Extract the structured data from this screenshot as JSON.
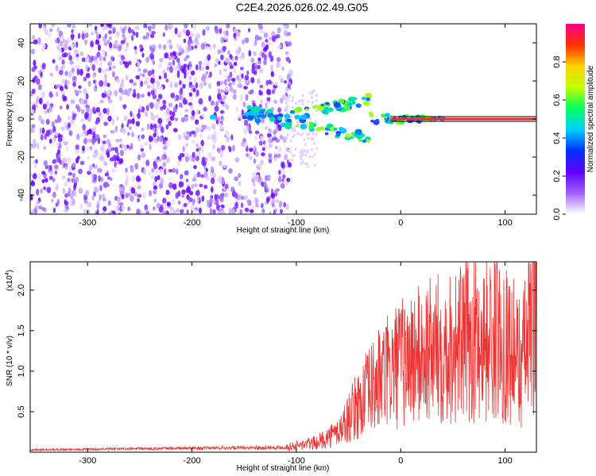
{
  "title": "C2E4.2026.026.02.49.G05",
  "chart_data": [
    {
      "type": "heatmap",
      "name": "spectrogram",
      "xlabel": "Height of straight line (km)",
      "ylabel": "Frequency (Hz)",
      "xlim": [
        -355,
        130
      ],
      "ylim": [
        -50,
        50
      ],
      "xticks": [
        -300,
        -200,
        -100,
        0,
        100
      ],
      "yticks": [
        -40,
        -20,
        0,
        20,
        40
      ],
      "noise_region_km": [
        -355,
        -105
      ],
      "signal_line_hz": 0,
      "colorbar": {
        "label": "Normalized spectral amplitude",
        "range": [
          0,
          1
        ],
        "ticks": [
          0.0,
          0.2,
          0.4,
          0.6,
          0.8
        ],
        "colors": [
          "#ffffff",
          "#a060ff",
          "#6000ff",
          "#0030ff",
          "#00d0ff",
          "#00ff60",
          "#c0ff00",
          "#ffd000",
          "#ff3000",
          "#ff0090"
        ]
      }
    },
    {
      "type": "line",
      "name": "snr",
      "xlabel": "Height of straight line (km)",
      "ylabel": "SNR (10 * v/v)",
      "scale_label": "(x10",
      "scale_exp": "4",
      "xlim": [
        -355,
        130
      ],
      "ylim": [
        0,
        23500
      ],
      "xticks": [
        -300,
        -200,
        -100,
        0,
        100
      ],
      "yticks": [
        0.5,
        1.0,
        1.5,
        2.0
      ],
      "ytick_labels": [
        "0.5",
        "1.0",
        "1.5",
        "2.0"
      ],
      "color": "#ee3333",
      "envelope_km": [
        -355,
        -110,
        -80,
        -60,
        -40,
        -20,
        0,
        20,
        40,
        60,
        80,
        100,
        115,
        125,
        130
      ],
      "envelope_snr": [
        300,
        600,
        1200,
        2500,
        6000,
        9000,
        11000,
        12000,
        13000,
        13500,
        14000,
        14000,
        11000,
        15000,
        22000
      ]
    }
  ]
}
